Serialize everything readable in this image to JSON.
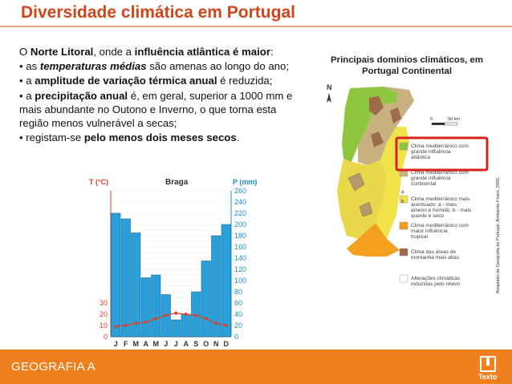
{
  "slide": {
    "title": "Diversidade climática em Portugal",
    "footer_label": "GEOGRAFIA A",
    "publisher": "Texto"
  },
  "text": {
    "p1_a": "O ",
    "p1_b": "Norte Litoral",
    "p1_c": ", onde a ",
    "p1_d": "influência atlântica é maior",
    "p1_e": ":",
    "p2_a": "• as ",
    "p2_b": "temperaturas médias",
    "p2_c": " são amenas ao longo do ano;",
    "p3_a": "• a ",
    "p3_b": "amplitude de variação térmica anual",
    "p3_c": " é reduzida;",
    "p4_a": "• a ",
    "p4_b": "precipitação anual",
    "p4_c": " é, em geral, superior a 1000 mm e mais abundante no Outono e Inverno, o que torna esta região menos vulnerável a secas;",
    "p5_a": "• registam-se ",
    "p5_b": "pelo menos dois meses secos",
    "p5_c": "."
  },
  "chart_data": {
    "type": "bar",
    "title": "Braga",
    "ylabel_left": "T (°C)",
    "ylabel_right": "P (mm)",
    "categories": [
      "J",
      "F",
      "M",
      "A",
      "M",
      "J",
      "J",
      "A",
      "S",
      "O",
      "N",
      "D"
    ],
    "precipitation": [
      220,
      210,
      185,
      105,
      110,
      75,
      30,
      40,
      80,
      135,
      180,
      200
    ],
    "temperature": [
      9,
      10,
      12,
      13,
      16,
      19,
      21,
      20,
      19,
      16,
      12,
      10
    ],
    "ylim_precip": [
      0,
      260
    ],
    "ylim_temp": [
      0,
      130
    ],
    "precip_ticks": [
      0,
      10,
      20,
      30,
      40,
      50,
      60,
      70,
      80,
      90,
      100,
      110,
      120,
      130,
      140,
      150,
      160,
      170,
      180,
      190,
      200,
      220,
      240,
      260
    ],
    "temp_ticks": [
      0,
      10,
      20,
      30
    ]
  },
  "map": {
    "title": "Principais domínios climáticos, em Portugal Continental",
    "north": "N",
    "scale": "50 km",
    "scale_zero": "0",
    "legend": [
      {
        "text": "Clima mediterrânico com grande influência atlântica",
        "color": "#8fc63f"
      },
      {
        "text": "Clima mediterrânico com grande influência continental",
        "color": "#c9b07f"
      },
      {
        "text": "Clima mediterrânico mais acentuado: a - mais ameno e húmido; b - mais quente e seco",
        "color": "#f2e34a"
      },
      {
        "text": "Clima mediterrânico com maior influência tropical",
        "color": "#f2a01e"
      },
      {
        "text": "Clima das áreas de montanha mais altas",
        "color": "#9b6b4a"
      },
      {
        "text": "Alterações climáticas induzidas pelo relevo",
        "color": "#ffffff"
      }
    ],
    "legend_ab": [
      "a",
      "b"
    ],
    "source": "Adaptado de Geografia de Portugal, Ambiente Físico, 2005."
  }
}
